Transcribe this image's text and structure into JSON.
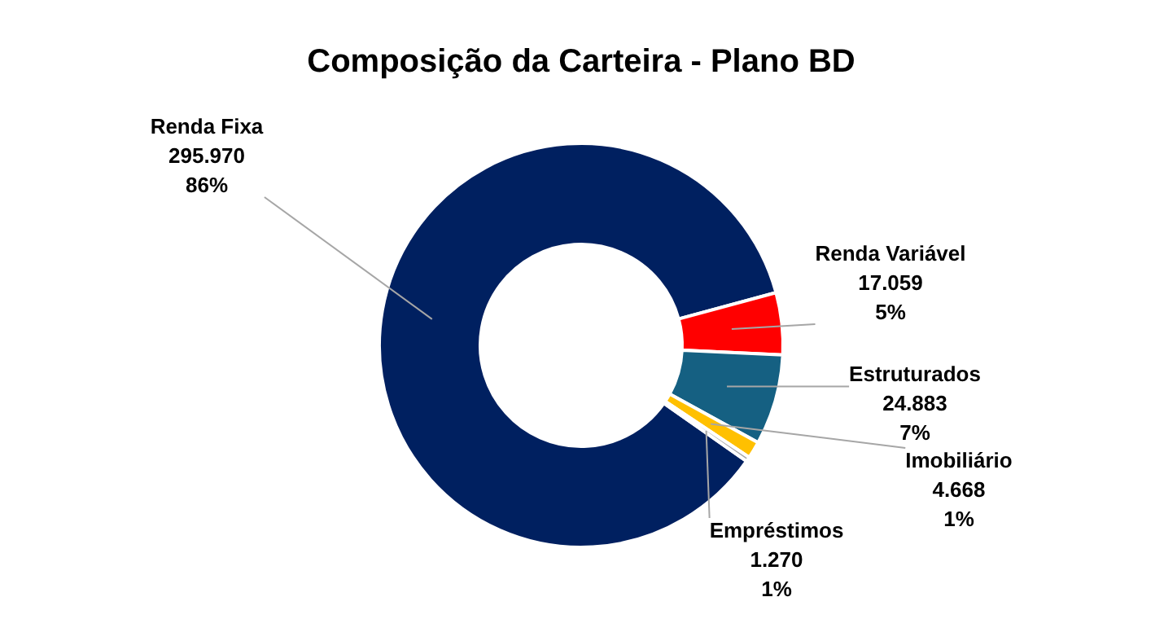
{
  "chart_data": {
    "type": "donut",
    "title": "Composição da Carteira - Plano BD",
    "categories": [
      "Renda Fixa",
      "Renda Variável",
      "Estruturados",
      "Imobiliário",
      "Empréstimos"
    ],
    "values": [
      295970,
      17059,
      24883,
      4668,
      1270
    ],
    "value_labels": [
      "295.970\n86%",
      "17.059\n5%",
      "24.883\n7%",
      "4.668\n1%",
      "1.270\n1%"
    ],
    "colors": [
      "#002060",
      "#ff0000",
      "#156082",
      "#ffc000",
      "#a5a5a5"
    ]
  }
}
